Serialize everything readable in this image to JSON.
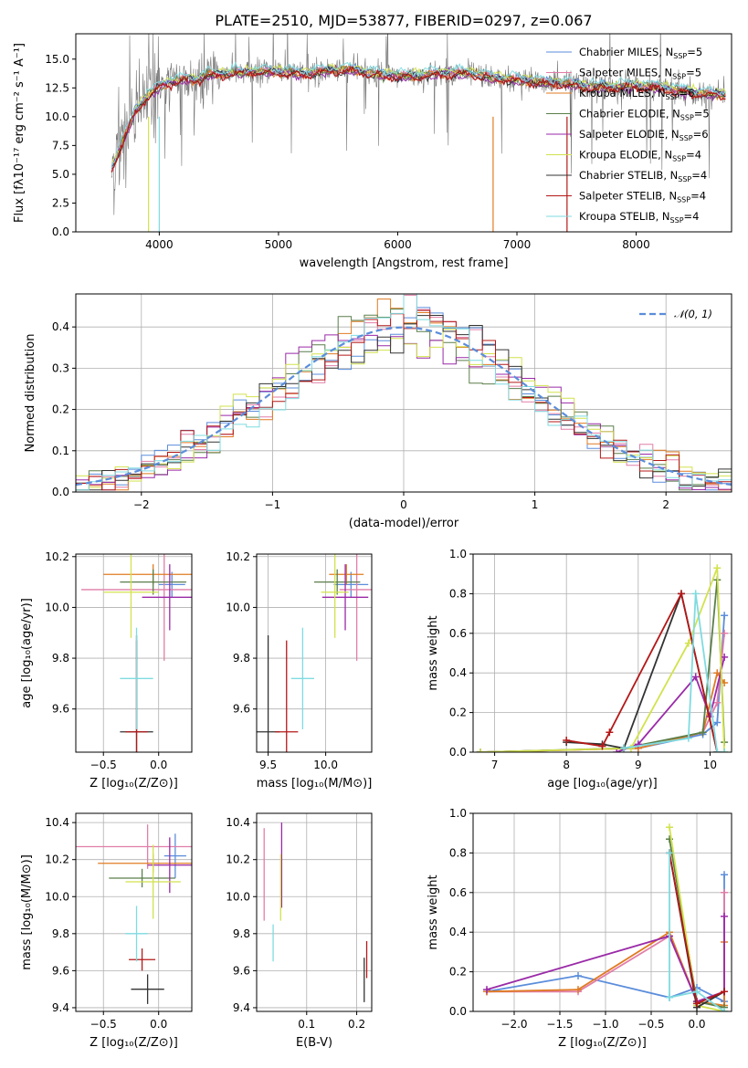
{
  "colors": {
    "Chabrier MILES": "#5b8ddb",
    "Salpeter MILES": "#e17ea8",
    "Kroupa MILES": "#e07b22",
    "Chabrier ELODIE": "#5a7f4a",
    "Salpeter ELODIE": "#9a2aa8",
    "Kroupa ELODIE": "#d2e24d",
    "Chabrier STELIB": "#333333",
    "Salpeter STELIB": "#b41818",
    "Kroupa STELIB": "#7fdbe0",
    "Observed": "#777777"
  },
  "chart_data": [
    {
      "id": "spectrum",
      "type": "line",
      "title": "PLATE=2510, MJD=53877, FIBERID=0297, z=0.067",
      "xlabel": "wavelength [Angstrom, rest frame]",
      "ylabel": "Flux [fλ10⁻¹⁷ erg cm⁻² s⁻¹ A⁻¹]",
      "xlim": [
        3300,
        8800
      ],
      "ylim": [
        0,
        17.2
      ],
      "xticks": [
        "4000",
        "5000",
        "6000",
        "7000",
        "8000"
      ],
      "yticks": [
        "0.0",
        "2.5",
        "5.0",
        "7.5",
        "10.0",
        "12.5",
        "15.0"
      ],
      "grid": false,
      "legend_position": "top-right",
      "legend": [
        {
          "name": "Chabrier MILES",
          "nssp": "5"
        },
        {
          "name": "Salpeter MILES",
          "nssp": "5"
        },
        {
          "name": "Kroupa MILES",
          "nssp": "6"
        },
        {
          "name": "Chabrier ELODIE",
          "nssp": "5"
        },
        {
          "name": "Salpeter ELODIE",
          "nssp": "6"
        },
        {
          "name": "Kroupa ELODIE",
          "nssp": "4"
        },
        {
          "name": "Chabrier STELIB",
          "nssp": "4"
        },
        {
          "name": "Salpeter STELIB",
          "nssp": "4"
        },
        {
          "name": "Kroupa STELIB",
          "nssp": "4"
        }
      ],
      "continuum": {
        "x": [
          3600,
          3700,
          3800,
          3900,
          4000,
          4100,
          4200,
          4300,
          4400,
          4600,
          4800,
          5000,
          5200,
          5400,
          5600,
          5800,
          6000,
          6200,
          6400,
          6600,
          6800,
          7000,
          7200,
          7400,
          7600,
          7800,
          8000,
          8200,
          8400,
          8600,
          8800
        ],
        "y": [
          5.5,
          8.0,
          10.5,
          11.8,
          12.6,
          13.0,
          13.3,
          13.2,
          13.6,
          13.8,
          13.9,
          13.9,
          13.7,
          14.0,
          14.1,
          13.7,
          13.5,
          13.6,
          13.8,
          13.8,
          13.4,
          13.2,
          13.0,
          12.9,
          12.6,
          12.6,
          12.7,
          12.5,
          12.2,
          12.0,
          11.9
        ]
      }
    },
    {
      "id": "residuals",
      "type": "area",
      "xlabel": "(data-model)/error",
      "ylabel": "Normed distribution",
      "xlim": [
        -2.5,
        2.5
      ],
      "ylim": [
        0,
        0.48
      ],
      "xticks": [
        "−2",
        "−1",
        "0",
        "1",
        "2"
      ],
      "yticks": [
        "0.0",
        "0.1",
        "0.2",
        "0.3",
        "0.4"
      ],
      "grid": true,
      "legend_position": "top-right",
      "reference_curve": "𝒩(0, 1)",
      "bin_width": 0.1
    },
    {
      "id": "age-vs-Z",
      "type": "scatter",
      "xlabel": "Z [log₁₀(Z/Z⊙)]",
      "ylabel": "age  [log₁₀(age/yr)]",
      "xlim": [
        -0.75,
        0.3
      ],
      "ylim": [
        9.43,
        10.21
      ],
      "xticks": [
        "−0.5",
        "0.0"
      ],
      "yticks": [
        "9.6",
        "9.8",
        "10.0",
        "10.2"
      ],
      "grid": true,
      "points": [
        {
          "series": "Chabrier MILES",
          "x": 0.12,
          "y": 10.09,
          "xerr": 0.12,
          "yerr": 0.05
        },
        {
          "series": "Salpeter MILES",
          "x": 0.05,
          "y": 10.07,
          "xerr": 0.75,
          "yerr": 0.28
        },
        {
          "series": "Kroupa MILES",
          "x": -0.05,
          "y": 10.13,
          "xerr": 0.45,
          "yerr": 0.04
        },
        {
          "series": "Chabrier ELODIE",
          "x": -0.05,
          "y": 10.1,
          "xerr": 0.3,
          "yerr": 0.05
        },
        {
          "series": "Salpeter ELODIE",
          "x": 0.1,
          "y": 10.04,
          "xerr": 0.25,
          "yerr": 0.13
        },
        {
          "series": "Kroupa ELODIE",
          "x": -0.25,
          "y": 10.06,
          "xerr": 0.25,
          "yerr": 0.18
        },
        {
          "series": "Chabrier STELIB",
          "x": -0.2,
          "y": 9.51,
          "xerr": 0.15,
          "yerr": 0.38
        },
        {
          "series": "Salpeter STELIB",
          "x": -0.2,
          "y": 9.51,
          "xerr": 0.1,
          "yerr": 0.36
        },
        {
          "series": "Kroupa STELIB",
          "x": -0.2,
          "y": 9.72,
          "xerr": 0.15,
          "yerr": 0.2
        }
      ]
    },
    {
      "id": "age-vs-mass",
      "type": "scatter",
      "xlabel": "mass [log₁₀(M/M⊙)]",
      "ylabel": "",
      "xlim": [
        9.4,
        10.4
      ],
      "ylim": [
        9.43,
        10.21
      ],
      "xticks": [
        "9.5",
        "10.0"
      ],
      "yticks": [
        "9.6",
        "9.8",
        "10.0",
        "10.2"
      ],
      "grid": true,
      "points": [
        {
          "series": "Chabrier MILES",
          "x": 10.22,
          "y": 10.09,
          "xerr": 0.15,
          "yerr": 0.05
        },
        {
          "series": "Salpeter MILES",
          "x": 10.27,
          "y": 10.07,
          "xerr": 0.15,
          "yerr": 0.28
        },
        {
          "series": "Kroupa MILES",
          "x": 10.18,
          "y": 10.13,
          "xerr": 0.15,
          "yerr": 0.04
        },
        {
          "series": "Chabrier ELODIE",
          "x": 10.1,
          "y": 10.1,
          "xerr": 0.2,
          "yerr": 0.05
        },
        {
          "series": "Salpeter ELODIE",
          "x": 10.17,
          "y": 10.04,
          "xerr": 0.2,
          "yerr": 0.13
        },
        {
          "series": "Kroupa ELODIE",
          "x": 10.08,
          "y": 10.06,
          "xerr": 0.12,
          "yerr": 0.18
        },
        {
          "series": "Chabrier STELIB",
          "x": 9.5,
          "y": 9.51,
          "xerr": 0.1,
          "yerr": 0.38
        },
        {
          "series": "Salpeter STELIB",
          "x": 9.66,
          "y": 9.51,
          "xerr": 0.1,
          "yerr": 0.36
        },
        {
          "series": "Kroupa STELIB",
          "x": 9.8,
          "y": 9.72,
          "xerr": 0.1,
          "yerr": 0.2
        }
      ]
    },
    {
      "id": "massweight-vs-age",
      "type": "line",
      "xlabel": "age  [log₁₀(age/yr)]",
      "ylabel": "mass weight",
      "xlim": [
        6.7,
        10.3
      ],
      "ylim": [
        0,
        1
      ],
      "xticks": [
        "7",
        "8",
        "9",
        "10"
      ],
      "yticks": [
        "0.0",
        "0.2",
        "0.4",
        "0.6",
        "0.8",
        "1.0"
      ],
      "grid": true,
      "series": [
        {
          "name": "Chabrier MILES",
          "x": [
            6.8,
            9.0,
            9.9,
            10.1,
            10.2
          ],
          "y": [
            0.0,
            0.02,
            0.09,
            0.15,
            0.69
          ]
        },
        {
          "name": "Salpeter MILES",
          "x": [
            6.8,
            9.0,
            9.9,
            10.1,
            10.2
          ],
          "y": [
            0.0,
            0.02,
            0.1,
            0.25,
            0.6
          ]
        },
        {
          "name": "Kroupa MILES",
          "x": [
            6.8,
            9.0,
            9.9,
            10.1,
            10.2
          ],
          "y": [
            0.0,
            0.02,
            0.1,
            0.4,
            0.35
          ]
        },
        {
          "name": "Chabrier ELODIE",
          "x": [
            6.8,
            8.8,
            9.9,
            10.1,
            10.2
          ],
          "y": [
            0.0,
            0.02,
            0.1,
            0.87,
            0.05
          ]
        },
        {
          "name": "Salpeter ELODIE",
          "x": [
            8.7,
            9.0,
            9.8,
            10.0,
            10.2
          ],
          "y": [
            0.0,
            0.04,
            0.38,
            0.18,
            0.48
          ]
        },
        {
          "name": "Kroupa ELODIE",
          "x": [
            6.8,
            8.9,
            9.7,
            10.1,
            10.2
          ],
          "y": [
            0.0,
            0.02,
            0.55,
            0.93,
            0.0
          ]
        },
        {
          "name": "Chabrier STELIB",
          "x": [
            8.0,
            8.5,
            8.8,
            9.6,
            10.1
          ],
          "y": [
            0.05,
            0.04,
            0.02,
            0.8,
            0.0
          ]
        },
        {
          "name": "Salpeter STELIB",
          "x": [
            8.0,
            8.5,
            8.6,
            9.6,
            10.1
          ],
          "y": [
            0.06,
            0.03,
            0.1,
            0.8,
            0.0
          ]
        },
        {
          "name": "Kroupa STELIB",
          "x": [
            8.8,
            9.7,
            9.8,
            10.1,
            10.2
          ],
          "y": [
            0.02,
            0.07,
            0.8,
            0.0,
            0.0
          ]
        }
      ]
    },
    {
      "id": "mass-vs-Z",
      "type": "scatter",
      "xlabel": "Z [log₁₀(Z/Z⊙)]",
      "ylabel": "mass [log₁₀(M/M⊙)]",
      "xlim": [
        -0.75,
        0.3
      ],
      "ylim": [
        9.38,
        10.45
      ],
      "xticks": [
        "−0.5",
        "0.0"
      ],
      "yticks": [
        "9.4",
        "9.6",
        "9.8",
        "10.0",
        "10.2",
        "10.4"
      ],
      "grid": true,
      "points": [
        {
          "series": "Chabrier MILES",
          "x": 0.15,
          "y": 10.22,
          "xerr": 0.1,
          "yerr": 0.12
        },
        {
          "series": "Salpeter MILES",
          "x": -0.1,
          "y": 10.27,
          "xerr": 0.65,
          "yerr": 0.12
        },
        {
          "series": "Kroupa MILES",
          "x": -0.05,
          "y": 10.18,
          "xerr": 0.5,
          "yerr": 0.05
        },
        {
          "series": "Chabrier ELODIE",
          "x": -0.15,
          "y": 10.1,
          "xerr": 0.3,
          "yerr": 0.05
        },
        {
          "series": "Salpeter ELODIE",
          "x": 0.1,
          "y": 10.17,
          "xerr": 0.2,
          "yerr": 0.15
        },
        {
          "series": "Kroupa ELODIE",
          "x": -0.05,
          "y": 10.08,
          "xerr": 0.25,
          "yerr": 0.2
        },
        {
          "series": "Chabrier STELIB",
          "x": -0.1,
          "y": 9.5,
          "xerr": 0.15,
          "yerr": 0.08
        },
        {
          "series": "Salpeter STELIB",
          "x": -0.15,
          "y": 9.66,
          "xerr": 0.12,
          "yerr": 0.06
        },
        {
          "series": "Kroupa STELIB",
          "x": -0.2,
          "y": 9.8,
          "xerr": 0.1,
          "yerr": 0.15
        }
      ]
    },
    {
      "id": "mass-vs-EBV",
      "type": "scatter",
      "xlabel": "E(B-V)",
      "ylabel": "",
      "xlim": [
        0.0,
        0.23
      ],
      "ylim": [
        9.38,
        10.45
      ],
      "xticks": [
        "0.1",
        "0.2"
      ],
      "yticks": [
        "9.4",
        "9.6",
        "9.8",
        "10.0",
        "10.2",
        "10.4"
      ],
      "grid": true,
      "points": [
        {
          "series": "Salpeter MILES",
          "x": 0.015,
          "y": 10.12,
          "xerr": 0,
          "yerr": 0.25
        },
        {
          "series": "Salpeter ELODIE",
          "x": 0.05,
          "y": 10.17,
          "xerr": 0,
          "yerr": 0.23
        },
        {
          "series": "Kroupa ELODIE",
          "x": 0.048,
          "y": 10.05,
          "xerr": 0,
          "yerr": 0.18
        },
        {
          "series": "Kroupa STELIB",
          "x": 0.033,
          "y": 9.75,
          "xerr": 0,
          "yerr": 0.1
        },
        {
          "series": "Chabrier STELIB",
          "x": 0.215,
          "y": 9.55,
          "xerr": 0,
          "yerr": 0.12
        },
        {
          "series": "Salpeter STELIB",
          "x": 0.22,
          "y": 9.66,
          "xerr": 0,
          "yerr": 0.1
        }
      ]
    },
    {
      "id": "massweight-vs-Z",
      "type": "line",
      "xlabel": "Z [log₁₀(Z/Z⊙)]",
      "ylabel": "mass weight",
      "xlim": [
        -2.45,
        0.38
      ],
      "ylim": [
        0,
        1
      ],
      "xticks": [
        "−2.0",
        "−1.5",
        "−1.0",
        "−0.5",
        "0.0"
      ],
      "yticks": [
        "0.0",
        "0.2",
        "0.4",
        "0.6",
        "0.8",
        "1.0"
      ],
      "grid": true,
      "series": [
        {
          "name": "Chabrier MILES",
          "x": [
            -2.3,
            -1.3,
            -0.3,
            0.0,
            0.3,
            0.3
          ],
          "y": [
            0.1,
            0.18,
            0.07,
            0.12,
            0.05,
            0.69
          ]
        },
        {
          "name": "Salpeter MILES",
          "x": [
            -2.3,
            -1.3,
            -0.3,
            0.0,
            0.3,
            0.3
          ],
          "y": [
            0.1,
            0.1,
            0.38,
            0.05,
            0.1,
            0.6
          ]
        },
        {
          "name": "Kroupa MILES",
          "x": [
            -2.3,
            -1.3,
            -0.3,
            0.0,
            0.3,
            0.3
          ],
          "y": [
            0.1,
            0.11,
            0.4,
            0.05,
            0.03,
            0.35
          ]
        },
        {
          "name": "Chabrier ELODIE",
          "x": [
            -0.3,
            0.0,
            0.3
          ],
          "y": [
            0.87,
            0.05,
            0.02
          ]
        },
        {
          "name": "Salpeter ELODIE",
          "x": [
            -2.3,
            -0.3,
            0.0,
            0.3,
            0.3
          ],
          "y": [
            0.11,
            0.38,
            0.05,
            0.1,
            0.48
          ]
        },
        {
          "name": "Kroupa ELODIE",
          "x": [
            -0.3,
            0.0,
            0.3
          ],
          "y": [
            0.93,
            0.03,
            0.0
          ]
        },
        {
          "name": "Chabrier STELIB",
          "x": [
            -0.3,
            0.0,
            0.3
          ],
          "y": [
            0.8,
            0.02,
            0.1
          ]
        },
        {
          "name": "Salpeter STELIB",
          "x": [
            -0.3,
            0.0,
            0.3
          ],
          "y": [
            0.8,
            0.04,
            0.1
          ]
        },
        {
          "name": "Kroupa STELIB",
          "x": [
            -0.3,
            -0.3,
            0.0,
            0.3
          ],
          "y": [
            0.8,
            0.07,
            0.1,
            0.0
          ]
        }
      ]
    }
  ]
}
